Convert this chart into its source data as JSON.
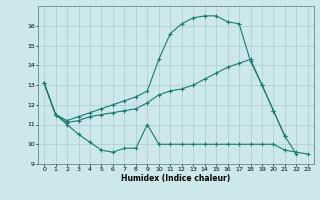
{
  "title": "",
  "xlabel": "Humidex (Indice chaleur)",
  "bg_color": "#cce8ec",
  "grid_color": "#aacccc",
  "line_color": "#1a7a6e",
  "xlim": [
    -0.5,
    23.5
  ],
  "ylim": [
    9,
    17
  ],
  "yticks": [
    9,
    10,
    11,
    12,
    13,
    14,
    15,
    16
  ],
  "xticks": [
    0,
    1,
    2,
    3,
    4,
    5,
    6,
    7,
    8,
    9,
    10,
    11,
    12,
    13,
    14,
    15,
    16,
    17,
    18,
    19,
    20,
    21,
    22,
    23
  ],
  "series1_x": [
    0,
    1,
    2,
    3,
    4,
    5,
    6,
    7,
    8,
    9,
    10,
    11,
    12,
    13,
    14,
    15,
    16,
    17,
    18,
    19,
    20,
    21,
    22,
    23
  ],
  "series1_y": [
    13.1,
    11.5,
    11.0,
    10.5,
    10.1,
    9.7,
    9.6,
    9.8,
    9.8,
    11.0,
    10.0,
    10.0,
    10.0,
    10.0,
    10.0,
    10.0,
    10.0,
    10.0,
    10.0,
    10.0,
    10.0,
    9.7,
    9.6,
    9.5
  ],
  "series2_x": [
    0,
    1,
    2,
    3,
    4,
    5,
    6,
    7,
    8,
    9,
    10,
    11,
    12,
    13,
    14,
    15,
    16,
    17,
    18,
    19,
    20,
    21,
    22
  ],
  "series2_y": [
    13.1,
    11.5,
    11.1,
    11.2,
    11.4,
    11.5,
    11.6,
    11.7,
    11.8,
    12.1,
    12.5,
    12.7,
    12.8,
    13.0,
    13.3,
    13.6,
    13.9,
    14.1,
    14.3,
    13.0,
    11.7,
    10.4,
    9.5
  ],
  "series3_x": [
    0,
    1,
    2,
    3,
    4,
    5,
    6,
    7,
    8,
    9,
    10,
    11,
    12,
    13,
    14,
    15,
    16,
    17,
    18,
    19,
    20,
    21
  ],
  "series3_y": [
    13.1,
    11.5,
    11.2,
    11.4,
    11.6,
    11.8,
    12.0,
    12.2,
    12.4,
    12.7,
    14.3,
    15.6,
    16.1,
    16.4,
    16.5,
    16.5,
    16.2,
    16.1,
    14.2,
    13.0,
    11.7,
    10.4
  ]
}
